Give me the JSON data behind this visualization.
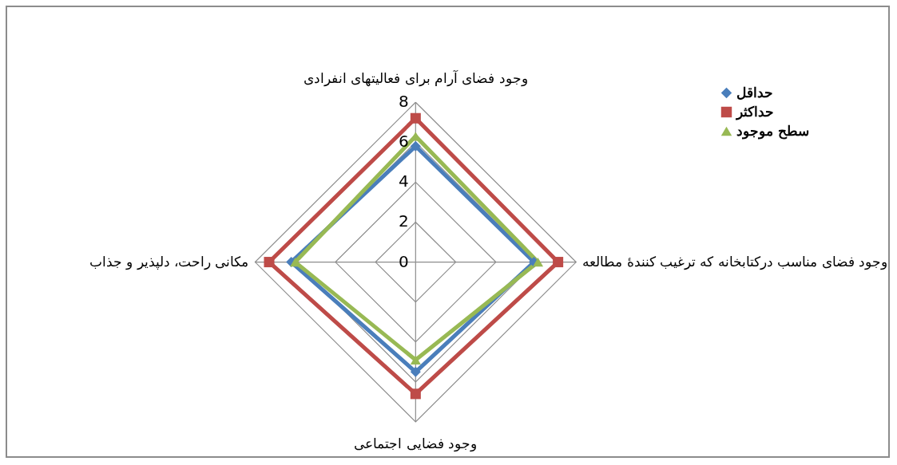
{
  "chart_data": {
    "type": "radar",
    "categories": [
      "وجود فضای آرام برای فعالیتهای انفرادی",
      "وجود فضای مناسب درکتابخانه که ترغیب کنندۀ مطالعه",
      "وجود فضایی اجتماعی",
      "مکانی راحت، دلپذیر و جذاب"
    ],
    "series": [
      {
        "name": "حداقل",
        "color": "#4a7ebb",
        "marker": "diamond",
        "values": [
          5.8,
          5.9,
          5.5,
          6.2
        ]
      },
      {
        "name": "حداکثر",
        "color": "#be4b48",
        "marker": "square",
        "values": [
          7.2,
          7.1,
          6.6,
          7.3
        ]
      },
      {
        "name": "سطح موجود",
        "color": "#98b954",
        "marker": "triangle",
        "values": [
          6.3,
          6.1,
          4.9,
          6.0
        ]
      }
    ],
    "ylim": [
      0,
      8
    ],
    "yticks": [
      0,
      2,
      4,
      6,
      8
    ],
    "grid": true,
    "legend": "top right"
  }
}
